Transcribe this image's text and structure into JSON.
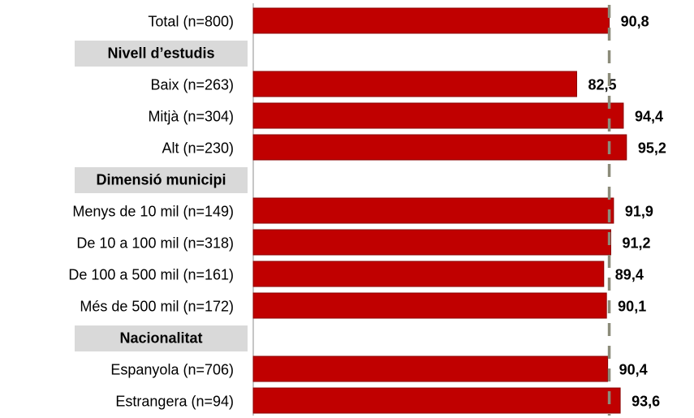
{
  "chart_data": {
    "type": "bar",
    "orientation": "horizontal",
    "rows": [
      {
        "kind": "bar",
        "label": "Total (n=800)",
        "value": 90.8,
        "value_label": "90,8"
      },
      {
        "kind": "header",
        "label": "Nivell d’estudis"
      },
      {
        "kind": "bar",
        "label": "Baix (n=263)",
        "value": 82.5,
        "value_label": "82,5"
      },
      {
        "kind": "bar",
        "label": "Mitjà (n=304)",
        "value": 94.4,
        "value_label": "94,4"
      },
      {
        "kind": "bar",
        "label": "Alt (n=230)",
        "value": 95.2,
        "value_label": "95,2"
      },
      {
        "kind": "header",
        "label": "Dimensió municipi"
      },
      {
        "kind": "bar",
        "label": "Menys de 10 mil (n=149)",
        "value": 91.9,
        "value_label": "91,9"
      },
      {
        "kind": "bar",
        "label": "De 10 a 100 mil (n=318)",
        "value": 91.2,
        "value_label": "91,2"
      },
      {
        "kind": "bar",
        "label": "De 100 a 500 mil (n=161)",
        "value": 89.4,
        "value_label": "89,4"
      },
      {
        "kind": "bar",
        "label": "Més de 500 mil (n=172)",
        "value": 90.1,
        "value_label": "90,1"
      },
      {
        "kind": "header",
        "label": "Nacionalitat"
      },
      {
        "kind": "bar",
        "label": "Espanyola (n=706)",
        "value": 90.4,
        "value_label": "90,4"
      },
      {
        "kind": "bar",
        "label": "Estrangera (n=94)",
        "value": 93.6,
        "value_label": "93,6"
      }
    ],
    "xlim": [
      0,
      100
    ],
    "reference_line": {
      "value": 90.8,
      "style": "dashed"
    },
    "grid": false,
    "legend": "none"
  },
  "colors": {
    "bar": "#C00000",
    "bar_stroke": "#8B0000",
    "header_bg": "#D9D9D9",
    "reference_line": "#8C8C7A",
    "axis": "#8C8C8C"
  }
}
